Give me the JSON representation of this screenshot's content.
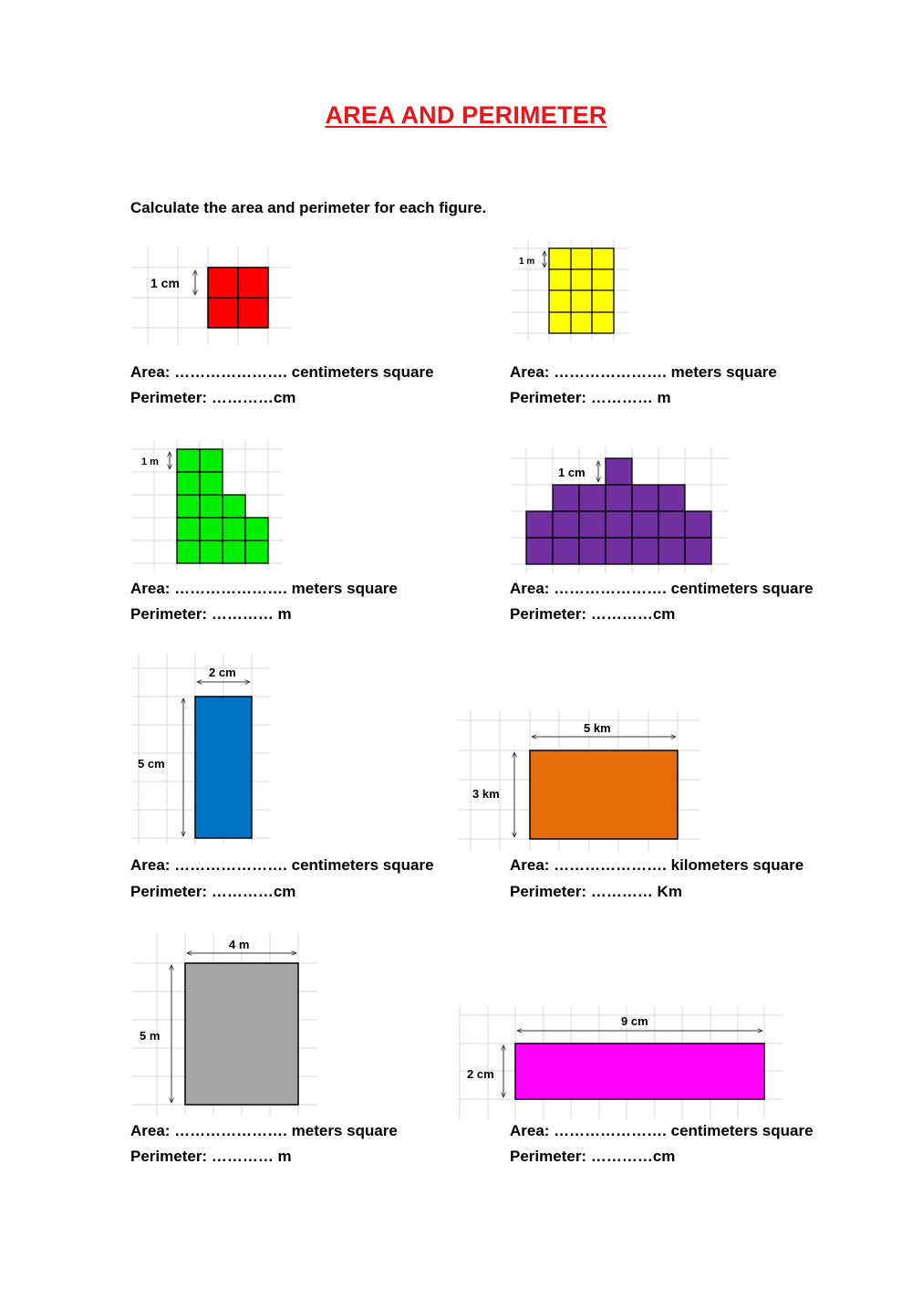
{
  "title": "AREA AND PERIMETER",
  "instruction": "Calculate the area and perimeter for each figure.",
  "figures": [
    {
      "name": "red-square",
      "fill": "#ff0000",
      "label": "1 cm",
      "grid_units": "2 x 2",
      "area_line": "Area: …………………. centimeters square",
      "perimeter_line": "Perimeter: …………cm"
    },
    {
      "name": "yellow-rectangle",
      "fill": "#ffff00",
      "label": "1 m",
      "grid_units": "3 x 4",
      "area_line": "Area: …………………. meters square",
      "perimeter_line": "Perimeter: ………… m"
    },
    {
      "name": "green-staircase",
      "fill": "#00ee00",
      "label": "1 m",
      "area_line": "Area: …………………. meters square",
      "perimeter_line": "Perimeter: ………… m"
    },
    {
      "name": "purple-stepped-shape",
      "fill": "#7030a0",
      "label": "1 cm",
      "area_line": "Area: …………………. centimeters square",
      "perimeter_line": "Perimeter: …………cm"
    },
    {
      "name": "blue-rectangle",
      "fill": "#0070c0",
      "width_label": "2 cm",
      "height_label": "5 cm",
      "area_line": "Area: …………………. centimeters square",
      "perimeter_line": "Perimeter: …………cm"
    },
    {
      "name": "orange-rectangle",
      "fill": "#e46c0a",
      "width_label": "5 km",
      "height_label": "3 km",
      "area_line": "Area: …………………. kilometers square",
      "perimeter_line": "Perimeter: ………… Km"
    },
    {
      "name": "gray-rectangle",
      "fill": "#a6a6a6",
      "width_label": "4 m",
      "height_label": "5 m",
      "area_line": "Area: …………………. meters square",
      "perimeter_line": "Perimeter: ………… m"
    },
    {
      "name": "magenta-rectangle",
      "fill": "#ff00ff",
      "width_label": "9 cm",
      "height_label": "2 cm",
      "area_line": "Area: …………………. centimeters square",
      "perimeter_line": "Perimeter: …………cm"
    }
  ]
}
